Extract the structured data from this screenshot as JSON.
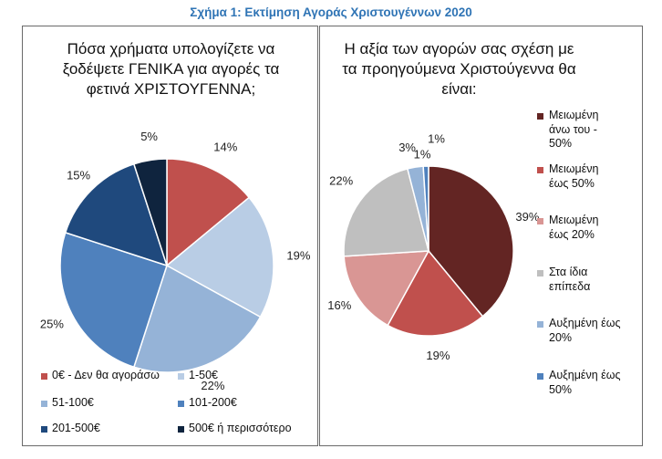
{
  "figure_title": "Σχήμα 1: Εκτίμηση Αγοράς Χριστουγέννων 2020",
  "chart_data": [
    {
      "type": "pie",
      "title_lines": [
        "Πόσα χρήματα υπολογίζετε να",
        "ξοδέψετε ΓΕΝΙΚΑ για αγορές τα",
        "φετινά ΧΡΙΣΤΟΥΓΕΝΝΑ;"
      ],
      "categories": [
        "0€ - Δεν θα αγοράσω",
        "1-50€",
        "51-100€",
        "101-200€",
        "201-500€",
        "500€ ή περισσότερο"
      ],
      "values": [
        14,
        19,
        22,
        25,
        15,
        5
      ],
      "labels": [
        "14%",
        "19%",
        "22%",
        "25%",
        "15%",
        "5%"
      ],
      "colors": [
        "#c0504d",
        "#b9cde5",
        "#95b3d7",
        "#4f81bd",
        "#1f497d",
        "#0f243e"
      ],
      "legend": "bottom"
    },
    {
      "type": "pie",
      "title_lines": [
        "Η αξία των αγορών σας σχέση με",
        "τα προηγούμενα Χριστούγεννα θα",
        "είναι:"
      ],
      "categories": [
        "Μειωμένη άνω του -50%",
        "Μειωμένη έως 50%",
        "Μειωμένη έως 20%",
        "Στα ίδια επίπεδα",
        "Αυξημένη έως 20%",
        "Αυξημένη έως 50%"
      ],
      "legend_lines": [
        [
          "Μειωμένη",
          "άνω του -",
          "50%"
        ],
        [
          "Μειωμένη",
          "έως 50%"
        ],
        [
          "Μειωμένη",
          "έως 20%"
        ],
        [
          "Στα ίδια",
          "επίπεδα"
        ],
        [
          "Αυξημένη έως",
          "20%"
        ],
        [
          "Αυξημένη έως",
          "50%"
        ]
      ],
      "values": [
        39,
        19,
        16,
        22,
        3,
        1
      ],
      "labels": [
        "39%",
        "19%",
        "16%",
        "22%",
        "3%",
        "1%"
      ],
      "extra_labels": [
        "1%"
      ],
      "colors": [
        "#632523",
        "#c0504d",
        "#d99694",
        "#bfbfbf",
        "#95b3d7",
        "#4f81bd"
      ],
      "legend": "right"
    }
  ]
}
